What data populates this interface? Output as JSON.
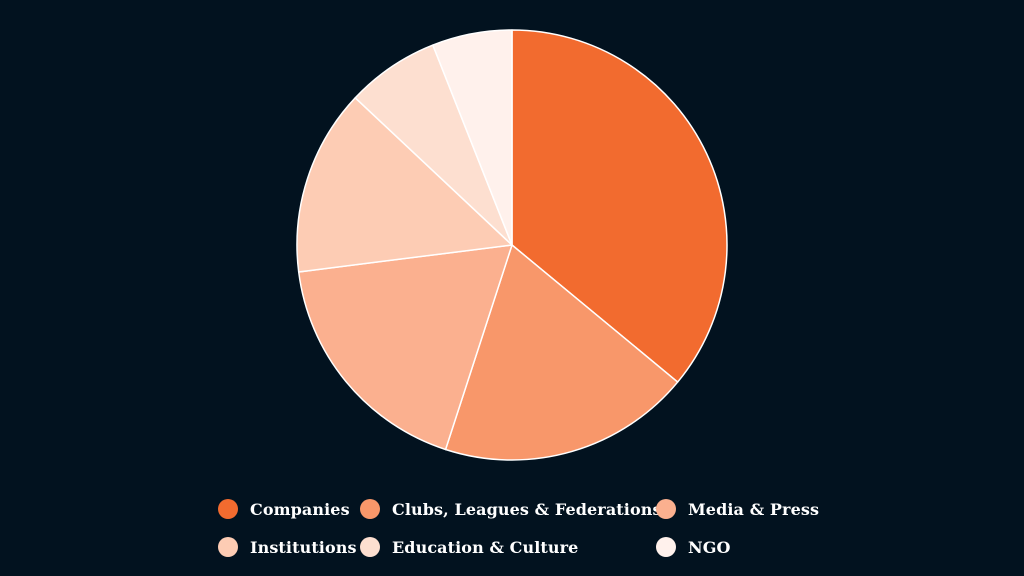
{
  "chart_data": {
    "type": "pie",
    "categories": [
      "Companies",
      "Clubs, Leagues & Federations",
      "Media & Press",
      "Institutions",
      "Education & Culture",
      "NGO"
    ],
    "values": [
      36,
      19,
      18,
      14,
      7,
      6
    ],
    "colors": [
      "#f26b2f",
      "#f8976a",
      "#fbb08f",
      "#fdccb4",
      "#fddfd0",
      "#fff1ec"
    ],
    "slice_border_color": "#ffffff",
    "start_angle": "top (12 o'clock)",
    "direction": "clockwise",
    "legend": "bottom"
  },
  "background_color": "#02121f"
}
